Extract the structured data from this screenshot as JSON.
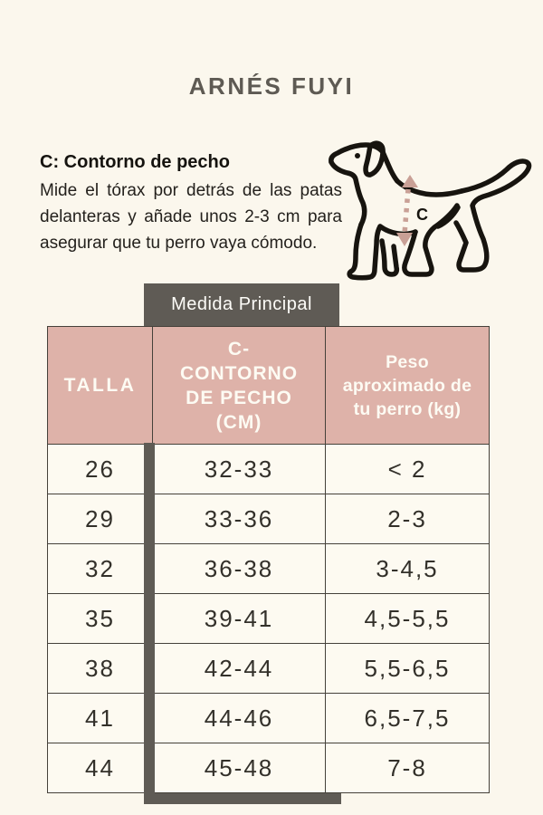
{
  "title": "ARNÉS FUYI",
  "info": {
    "heading": "C: Contorno de pecho",
    "body": "Mide el tórax por detrás de las patas delanteras y añade unos 2-3 cm para asegurar que tu perro vaya cómodo."
  },
  "illustration": {
    "type": "dog-line-drawing",
    "measure_label": "C"
  },
  "banner": {
    "label": "Medida Principal"
  },
  "size_table": {
    "headers": [
      "TALLA",
      "C-CONTORNO DE PECHO (CM)",
      "Peso aproximado de tu perro (kg)"
    ],
    "header_display": {
      "col1": "TALLA",
      "col2": "C-\nCONTORNO\nDE PECHO\n(CM)",
      "col3": "Peso\naproximado de\ntu perro (kg)"
    },
    "rows": [
      {
        "talla": "26",
        "contorno_cm": "32-33",
        "peso_kg": "< 2"
      },
      {
        "talla": "29",
        "contorno_cm": "33-36",
        "peso_kg": "2-3"
      },
      {
        "talla": "32",
        "contorno_cm": "36-38",
        "peso_kg": "3-4,5"
      },
      {
        "talla": "35",
        "contorno_cm": "39-41",
        "peso_kg": "4,5-5,5"
      },
      {
        "talla": "38",
        "contorno_cm": "42-44",
        "peso_kg": "5,5-6,5"
      },
      {
        "talla": "41",
        "contorno_cm": "44-46",
        "peso_kg": "6,5-7,5"
      },
      {
        "talla": "44",
        "contorno_cm": "45-48",
        "peso_kg": "7-8"
      }
    ]
  },
  "colors": {
    "background": "#fbf7ed",
    "header_pink": "#deb2a9",
    "accent_gray": "#5f5b55",
    "measure_rose": "#c9a096",
    "ink": "#17140f"
  }
}
